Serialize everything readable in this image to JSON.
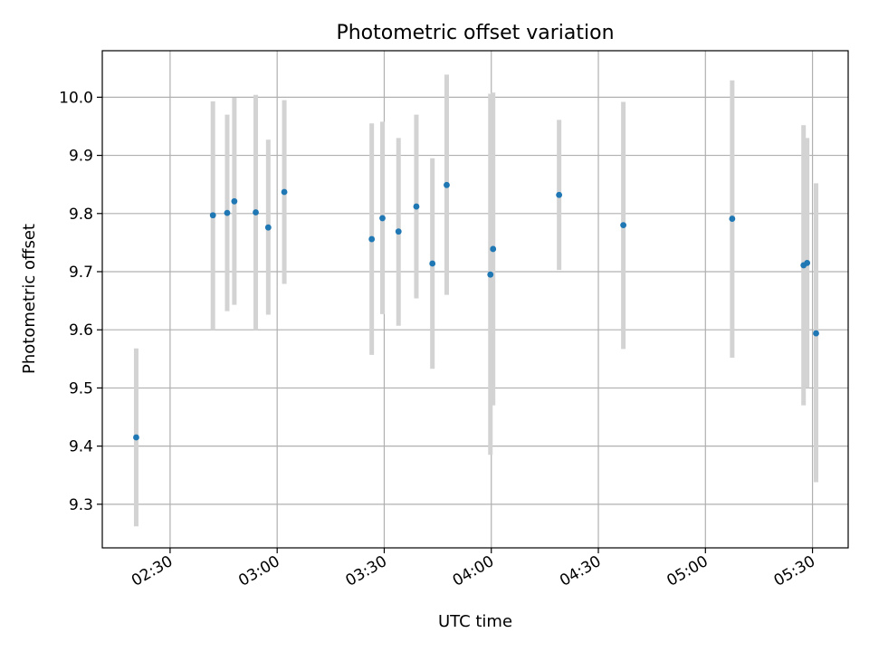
{
  "chart_data": {
    "type": "scatter",
    "title": "Photometric offset variation",
    "xlabel": "UTC time",
    "ylabel": "Photometric offset",
    "x_axis_kind": "time",
    "xlim": [
      "02:11",
      "05:40"
    ],
    "ylim": [
      9.225,
      10.08
    ],
    "x_ticks": [
      "02:30",
      "03:00",
      "03:30",
      "04:00",
      "04:30",
      "05:00",
      "05:30"
    ],
    "y_ticks": [
      9.3,
      9.4,
      9.5,
      9.6,
      9.7,
      9.8,
      9.9,
      10.0
    ],
    "y_tick_labels": [
      "9.3",
      "9.4",
      "9.5",
      "9.6",
      "9.7",
      "9.8",
      "9.9",
      "10.0"
    ],
    "grid": true,
    "marker_color": "#1f77b4",
    "errorbar_color": "#d3d3d3",
    "points": [
      {
        "time": "02:20:30",
        "y": 9.415,
        "ylow": 9.262,
        "yhigh": 9.568
      },
      {
        "time": "02:42:00",
        "y": 9.797,
        "ylow": 9.6,
        "yhigh": 9.993
      },
      {
        "time": "02:46:00",
        "y": 9.801,
        "ylow": 9.632,
        "yhigh": 9.97
      },
      {
        "time": "02:48:00",
        "y": 9.821,
        "ylow": 9.643,
        "yhigh": 9.999
      },
      {
        "time": "02:54:00",
        "y": 9.802,
        "ylow": 9.6,
        "yhigh": 10.004
      },
      {
        "time": "02:57:30",
        "y": 9.776,
        "ylow": 9.626,
        "yhigh": 9.927
      },
      {
        "time": "03:02:00",
        "y": 9.837,
        "ylow": 9.679,
        "yhigh": 9.995
      },
      {
        "time": "03:26:30",
        "y": 9.756,
        "ylow": 9.557,
        "yhigh": 9.955
      },
      {
        "time": "03:29:30",
        "y": 9.792,
        "ylow": 9.627,
        "yhigh": 9.958
      },
      {
        "time": "03:34:00",
        "y": 9.769,
        "ylow": 9.607,
        "yhigh": 9.93
      },
      {
        "time": "03:39:00",
        "y": 9.812,
        "ylow": 9.654,
        "yhigh": 9.97
      },
      {
        "time": "03:43:30",
        "y": 9.714,
        "ylow": 9.533,
        "yhigh": 9.895
      },
      {
        "time": "03:47:30",
        "y": 9.849,
        "ylow": 9.66,
        "yhigh": 10.039
      },
      {
        "time": "03:59:45",
        "y": 9.695,
        "ylow": 9.385,
        "yhigh": 10.006
      },
      {
        "time": "04:00:30",
        "y": 9.739,
        "ylow": 9.47,
        "yhigh": 10.008
      },
      {
        "time": "04:19:00",
        "y": 9.832,
        "ylow": 9.703,
        "yhigh": 9.961
      },
      {
        "time": "04:37:00",
        "y": 9.78,
        "ylow": 9.567,
        "yhigh": 9.992
      },
      {
        "time": "05:07:30",
        "y": 9.791,
        "ylow": 9.552,
        "yhigh": 10.029
      },
      {
        "time": "05:27:30",
        "y": 9.711,
        "ylow": 9.47,
        "yhigh": 9.952
      },
      {
        "time": "05:28:30",
        "y": 9.715,
        "ylow": 9.5,
        "yhigh": 9.93
      },
      {
        "time": "05:31:00",
        "y": 9.594,
        "ylow": 9.338,
        "yhigh": 9.852
      }
    ]
  }
}
